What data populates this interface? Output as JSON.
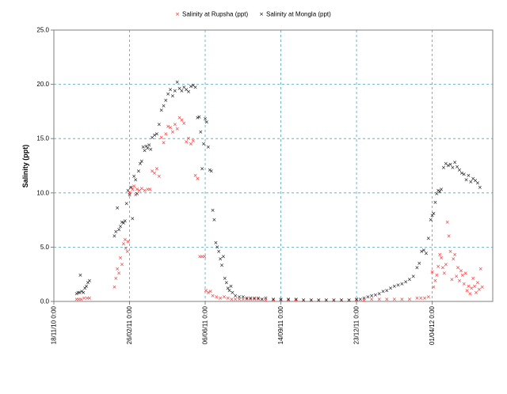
{
  "chart_data": {
    "type": "scatter",
    "ylabel": "Salinity (ppt)",
    "xlabel": "",
    "ylim": [
      0,
      25
    ],
    "y_ticks": [
      "0.0",
      "5.0",
      "10.0",
      "15.0",
      "20.0",
      "25.0"
    ],
    "x_tick_labels": [
      "18/11/10 0:00",
      "26/02/11 0:00",
      "06/06/11 0:00",
      "14/09/11 0:00",
      "23/12/11 0:00",
      "01/04/12 0:00"
    ],
    "x_tick_days": [
      0,
      100,
      200,
      300,
      400,
      500
    ],
    "xlim_days": [
      0,
      580
    ],
    "grid": true,
    "legend_position": "top-center",
    "series": [
      {
        "name": "Salinity at Rupsha (ppt)",
        "color": "#ff2020",
        "marker": "x",
        "points": [
          [
            30,
            0.2
          ],
          [
            33,
            0.2
          ],
          [
            36,
            0.2
          ],
          [
            40,
            0.3
          ],
          [
            44,
            0.3
          ],
          [
            47,
            0.3
          ],
          [
            80,
            1.3
          ],
          [
            82,
            2.1
          ],
          [
            84,
            3.0
          ],
          [
            86,
            2.6
          ],
          [
            88,
            4.0
          ],
          [
            90,
            3.4
          ],
          [
            92,
            5.3
          ],
          [
            94,
            5.7
          ],
          [
            95,
            4.9
          ],
          [
            97,
            4.6
          ],
          [
            98,
            5.5
          ],
          [
            100,
            10.0
          ],
          [
            102,
            10.5
          ],
          [
            104,
            10.3
          ],
          [
            106,
            10.6
          ],
          [
            108,
            9.8
          ],
          [
            110,
            10.3
          ],
          [
            113,
            10.2
          ],
          [
            116,
            10.4
          ],
          [
            120,
            10.2
          ],
          [
            124,
            10.3
          ],
          [
            127,
            10.3
          ],
          [
            130,
            12.0
          ],
          [
            133,
            11.8
          ],
          [
            136,
            12.2
          ],
          [
            139,
            11.5
          ],
          [
            142,
            15.1
          ],
          [
            145,
            14.6
          ],
          [
            148,
            15.4
          ],
          [
            151,
            16.1
          ],
          [
            154,
            16.0
          ],
          [
            157,
            15.6
          ],
          [
            160,
            16.3
          ],
          [
            163,
            15.9
          ],
          [
            166,
            16.9
          ],
          [
            169,
            16.7
          ],
          [
            172,
            16.4
          ],
          [
            175,
            14.7
          ],
          [
            178,
            15.0
          ],
          [
            181,
            14.5
          ],
          [
            184,
            14.8
          ],
          [
            187,
            11.6
          ],
          [
            190,
            11.3
          ],
          [
            193,
            4.1
          ],
          [
            196,
            4.1
          ],
          [
            199,
            4.1
          ],
          [
            201,
            1.0
          ],
          [
            204,
            0.8
          ],
          [
            207,
            0.9
          ],
          [
            210,
            0.5
          ],
          [
            215,
            0.4
          ],
          [
            220,
            0.3
          ],
          [
            225,
            0.4
          ],
          [
            230,
            0.3
          ],
          [
            235,
            0.2
          ],
          [
            240,
            0.2
          ],
          [
            245,
            0.2
          ],
          [
            250,
            0.2
          ],
          [
            255,
            0.2
          ],
          [
            260,
            0.2
          ],
          [
            265,
            0.2
          ],
          [
            270,
            0.2
          ],
          [
            275,
            0.2
          ],
          [
            280,
            0.1
          ],
          [
            290,
            0.1
          ],
          [
            300,
            0.1
          ],
          [
            310,
            0.1
          ],
          [
            320,
            0.1
          ],
          [
            330,
            0.1
          ],
          [
            340,
            0.1
          ],
          [
            350,
            0.1
          ],
          [
            360,
            0.1
          ],
          [
            370,
            0.1
          ],
          [
            380,
            0.1
          ],
          [
            390,
            0.1
          ],
          [
            400,
            0.1
          ],
          [
            410,
            0.1
          ],
          [
            420,
            0.2
          ],
          [
            430,
            0.2
          ],
          [
            440,
            0.2
          ],
          [
            450,
            0.2
          ],
          [
            460,
            0.2
          ],
          [
            470,
            0.2
          ],
          [
            480,
            0.3
          ],
          [
            485,
            0.3
          ],
          [
            490,
            0.3
          ],
          [
            495,
            0.4
          ],
          [
            500,
            2.7
          ],
          [
            502,
            1.3
          ],
          [
            504,
            1.9
          ],
          [
            506,
            2.4
          ],
          [
            508,
            3.2
          ],
          [
            510,
            4.3
          ],
          [
            512,
            4.0
          ],
          [
            514,
            3.1
          ],
          [
            516,
            2.6
          ],
          [
            518,
            3.4
          ],
          [
            520,
            7.3
          ],
          [
            522,
            6.0
          ],
          [
            524,
            4.6
          ],
          [
            526,
            2.0
          ],
          [
            528,
            3.9
          ],
          [
            530,
            4.3
          ],
          [
            532,
            2.3
          ],
          [
            534,
            3.1
          ],
          [
            536,
            1.9
          ],
          [
            538,
            2.8
          ],
          [
            540,
            2.4
          ],
          [
            542,
            1.6
          ],
          [
            544,
            2.6
          ],
          [
            546,
            1.0
          ],
          [
            548,
            1.4
          ],
          [
            550,
            0.7
          ],
          [
            552,
            1.2
          ],
          [
            554,
            2.1
          ],
          [
            556,
            1.4
          ],
          [
            558,
            0.8
          ],
          [
            560,
            1.7
          ],
          [
            562,
            1.1
          ],
          [
            564,
            3.0
          ],
          [
            566,
            1.3
          ]
        ]
      },
      {
        "name": "Salinity at Mongla (ppt)",
        "color": "#000000",
        "marker": "x",
        "points": [
          [
            30,
            0.7
          ],
          [
            32,
            0.8
          ],
          [
            34,
            0.8
          ],
          [
            35,
            2.4
          ],
          [
            37,
            0.9
          ],
          [
            39,
            0.8
          ],
          [
            41,
            1.2
          ],
          [
            43,
            1.4
          ],
          [
            45,
            1.7
          ],
          [
            47,
            1.9
          ],
          [
            80,
            6.0
          ],
          [
            82,
            6.4
          ],
          [
            84,
            8.6
          ],
          [
            86,
            6.6
          ],
          [
            88,
            6.9
          ],
          [
            90,
            7.3
          ],
          [
            92,
            7.2
          ],
          [
            94,
            7.4
          ],
          [
            96,
            9.0
          ],
          [
            98,
            10.2
          ],
          [
            100,
            9.8
          ],
          [
            102,
            10.5
          ],
          [
            104,
            7.6
          ],
          [
            106,
            11.5
          ],
          [
            108,
            11.2
          ],
          [
            110,
            9.9
          ],
          [
            112,
            12.0
          ],
          [
            114,
            12.7
          ],
          [
            116,
            12.9
          ],
          [
            118,
            14.2
          ],
          [
            120,
            13.9
          ],
          [
            122,
            14.3
          ],
          [
            124,
            14.1
          ],
          [
            126,
            14.4
          ],
          [
            128,
            14.0
          ],
          [
            130,
            15.1
          ],
          [
            133,
            15.3
          ],
          [
            136,
            15.4
          ],
          [
            139,
            16.3
          ],
          [
            142,
            17.6
          ],
          [
            145,
            18.0
          ],
          [
            148,
            18.5
          ],
          [
            151,
            19.1
          ],
          [
            154,
            19.5
          ],
          [
            157,
            18.9
          ],
          [
            160,
            19.4
          ],
          [
            163,
            20.2
          ],
          [
            166,
            19.6
          ],
          [
            169,
            19.4
          ],
          [
            172,
            19.7
          ],
          [
            175,
            19.5
          ],
          [
            178,
            19.3
          ],
          [
            181,
            19.8
          ],
          [
            184,
            19.9
          ],
          [
            187,
            19.7
          ],
          [
            190,
            16.9
          ],
          [
            192,
            17.0
          ],
          [
            194,
            15.6
          ],
          [
            196,
            12.2
          ],
          [
            198,
            14.5
          ],
          [
            200,
            16.8
          ],
          [
            202,
            16.5
          ],
          [
            204,
            14.2
          ],
          [
            206,
            12.1
          ],
          [
            208,
            12.0
          ],
          [
            210,
            8.4
          ],
          [
            212,
            7.5
          ],
          [
            214,
            5.4
          ],
          [
            216,
            5.0
          ],
          [
            218,
            4.6
          ],
          [
            220,
            3.9
          ],
          [
            222,
            3.3
          ],
          [
            224,
            4.1
          ],
          [
            226,
            2.1
          ],
          [
            228,
            1.7
          ],
          [
            230,
            1.2
          ],
          [
            232,
            1.0
          ],
          [
            234,
            1.4
          ],
          [
            236,
            0.8
          ],
          [
            240,
            0.5
          ],
          [
            245,
            0.4
          ],
          [
            250,
            0.4
          ],
          [
            255,
            0.3
          ],
          [
            260,
            0.3
          ],
          [
            265,
            0.3
          ],
          [
            270,
            0.3
          ],
          [
            275,
            0.2
          ],
          [
            280,
            0.3
          ],
          [
            290,
            0.2
          ],
          [
            300,
            0.2
          ],
          [
            310,
            0.2
          ],
          [
            320,
            0.2
          ],
          [
            330,
            0.1
          ],
          [
            340,
            0.1
          ],
          [
            350,
            0.1
          ],
          [
            360,
            0.1
          ],
          [
            370,
            0.1
          ],
          [
            380,
            0.1
          ],
          [
            390,
            0.1
          ],
          [
            400,
            0.2
          ],
          [
            405,
            0.2
          ],
          [
            410,
            0.3
          ],
          [
            415,
            0.4
          ],
          [
            420,
            0.5
          ],
          [
            425,
            0.6
          ],
          [
            430,
            0.7
          ],
          [
            435,
            0.9
          ],
          [
            440,
            1.0
          ],
          [
            445,
            1.2
          ],
          [
            450,
            1.4
          ],
          [
            455,
            1.5
          ],
          [
            460,
            1.6
          ],
          [
            465,
            1.8
          ],
          [
            470,
            2.0
          ],
          [
            475,
            2.3
          ],
          [
            480,
            3.1
          ],
          [
            483,
            3.5
          ],
          [
            486,
            4.6
          ],
          [
            489,
            4.7
          ],
          [
            492,
            4.4
          ],
          [
            495,
            5.8
          ],
          [
            498,
            7.5
          ],
          [
            500,
            7.9
          ],
          [
            502,
            8.1
          ],
          [
            504,
            9.1
          ],
          [
            506,
            9.9
          ],
          [
            508,
            10.2
          ],
          [
            510,
            10.1
          ],
          [
            512,
            10.3
          ],
          [
            515,
            12.3
          ],
          [
            518,
            12.7
          ],
          [
            521,
            12.5
          ],
          [
            524,
            12.6
          ],
          [
            527,
            12.3
          ],
          [
            530,
            12.8
          ],
          [
            533,
            12.4
          ],
          [
            536,
            12.1
          ],
          [
            539,
            11.8
          ],
          [
            542,
            11.7
          ],
          [
            545,
            11.2
          ],
          [
            548,
            11.6
          ],
          [
            551,
            11.0
          ],
          [
            554,
            11.3
          ],
          [
            557,
            11.1
          ],
          [
            560,
            10.9
          ],
          [
            563,
            10.5
          ]
        ]
      }
    ]
  }
}
